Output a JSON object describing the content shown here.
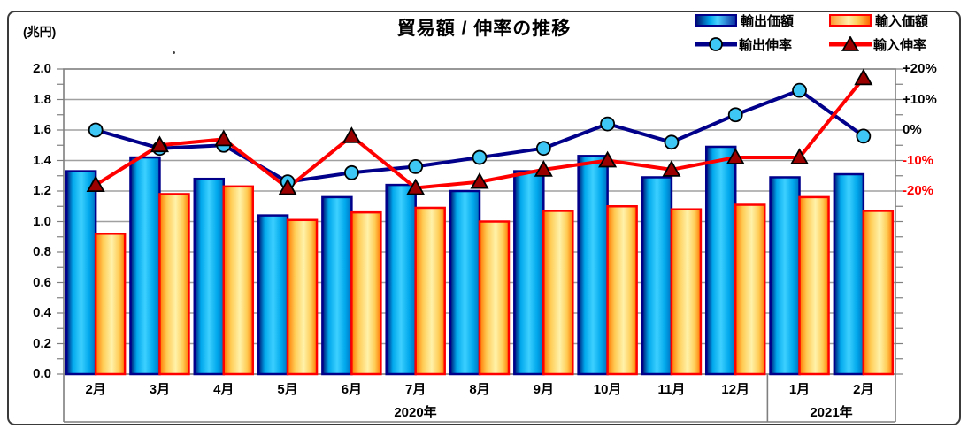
{
  "figure": {
    "title": "貿易額 / 伸率の推移",
    "unit_label": "(兆円)"
  },
  "legend": {
    "items": [
      {
        "label": "輸出価額",
        "type": "bar",
        "color": "#00aeef"
      },
      {
        "label": "輸入価額",
        "type": "bar",
        "color": "#ffd966"
      },
      {
        "label": "輸出伸率",
        "type": "line-circle",
        "color": "#00008b"
      },
      {
        "label": "輸入伸率",
        "type": "line-triangle",
        "color": "#ff0000"
      }
    ]
  },
  "chart_data": {
    "type": "bar+line combo",
    "title": "貿易額 / 伸率の推移",
    "categories": [
      "2月",
      "3月",
      "4月",
      "5月",
      "6月",
      "7月",
      "8月",
      "9月",
      "10月",
      "11月",
      "12月",
      "1月",
      "2月"
    ],
    "year_groups": [
      {
        "label": "2020年",
        "months": 11
      },
      {
        "label": "2021年",
        "months": 2
      }
    ],
    "series": [
      {
        "name": "輸出価額",
        "type": "bar",
        "axis": "left",
        "unit": "兆円",
        "values": [
          1.33,
          1.42,
          1.28,
          1.04,
          1.16,
          1.24,
          1.2,
          1.33,
          1.43,
          1.29,
          1.49,
          1.29,
          1.31
        ]
      },
      {
        "name": "輸入価額",
        "type": "bar",
        "axis": "left",
        "unit": "兆円",
        "values": [
          0.92,
          1.18,
          1.23,
          1.01,
          1.06,
          1.09,
          1.0,
          1.07,
          1.1,
          1.08,
          1.11,
          1.16,
          1.07
        ]
      },
      {
        "name": "輸出伸率",
        "type": "line",
        "axis": "right",
        "unit": "%",
        "values": [
          0,
          -6,
          -5,
          -17,
          -14,
          -12,
          -9,
          -6,
          2,
          -4,
          5,
          13,
          -2
        ]
      },
      {
        "name": "輸入伸率",
        "type": "line",
        "axis": "right",
        "unit": "%",
        "values": [
          -18,
          -5,
          -3,
          -19,
          -2,
          -19,
          -17,
          -13,
          -10,
          -13,
          -9,
          -9,
          17
        ]
      }
    ],
    "left_axis": {
      "unit": "兆円",
      "min": 0.0,
      "max": 2.0,
      "tick_step": 0.2,
      "ticks": [
        "2.0",
        "1.8",
        "1.6",
        "1.4",
        "1.2",
        "1.0",
        "0.8",
        "0.6",
        "0.4",
        "0.2",
        "0.0"
      ]
    },
    "right_axis": {
      "unit": "%",
      "zero_at_left_value": 1.6,
      "pct_per_left_unit": 50,
      "ticks": [
        {
          "label": "+20%",
          "pct": 20,
          "color": "#000000"
        },
        {
          "label": "+10%",
          "pct": 10,
          "color": "#000000"
        },
        {
          "label": "0%",
          "pct": 0,
          "color": "#000000"
        },
        {
          "label": "-10%",
          "pct": -10,
          "color": "#ff0000"
        },
        {
          "label": "-20%",
          "pct": -20,
          "color": "#ff0000"
        }
      ]
    },
    "grid": true,
    "legend_position": "top-right",
    "colors": {
      "export_bar_border": "#00008b",
      "export_bar_fill": [
        "#001070",
        "#00a8ec",
        "#3dd0ff",
        "#0070c0"
      ],
      "import_bar_border": "#ff0000",
      "import_bar_fill": [
        "#ff7700",
        "#ffcc55",
        "#fff2aa",
        "#ff7700"
      ],
      "export_line": "#00008b",
      "export_marker_fill": "#3ec6f4",
      "import_line": "#ff0000",
      "import_marker_fill": "#9b0000",
      "gridline": "#a0a0a0",
      "plot_border": "#7f7f7f"
    }
  }
}
